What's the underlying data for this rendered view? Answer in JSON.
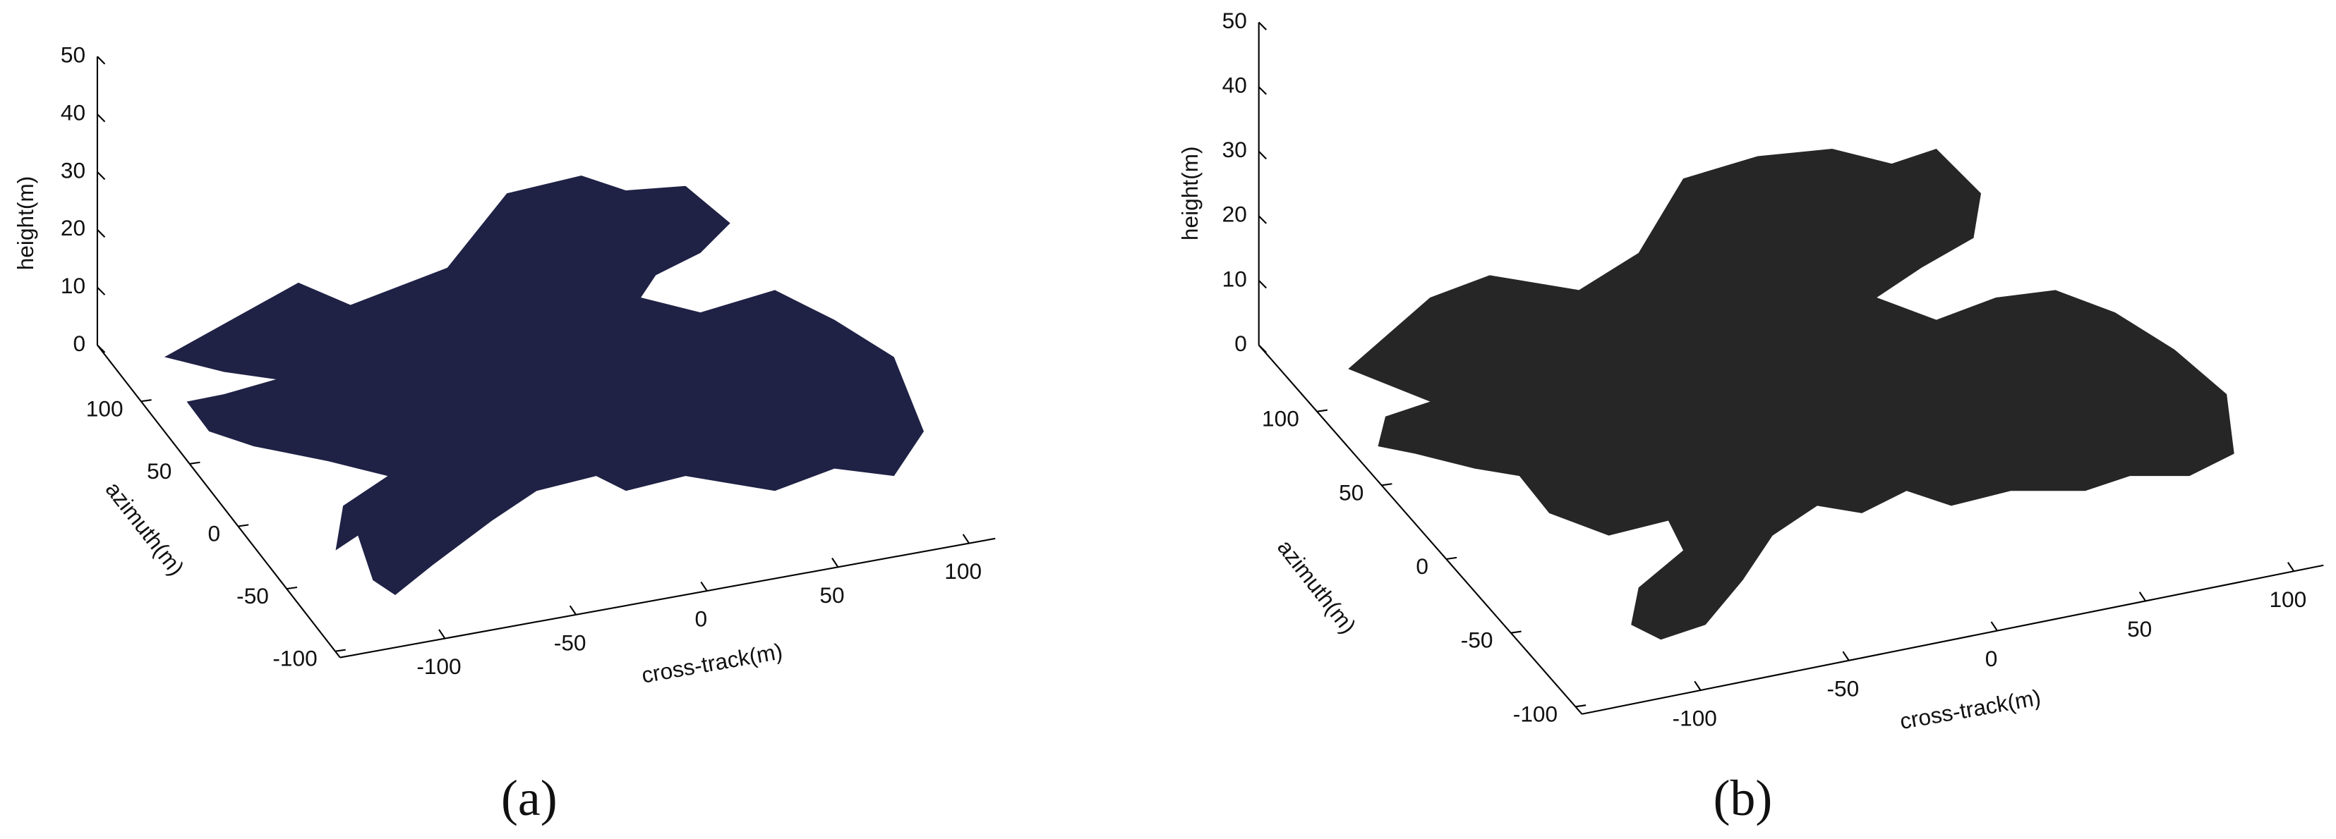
{
  "chart_data": [
    {
      "type": "scatter3d",
      "panel_label": "(a)",
      "xlabel": "cross-track(m)",
      "ylabel": "azimuth(m)",
      "zlabel": "height(m)",
      "xlim": [
        -140,
        110
      ],
      "xticks": [
        -100,
        -50,
        0,
        50,
        100
      ],
      "ylim": [
        -105,
        145
      ],
      "yticks": [
        -100,
        -50,
        0,
        50,
        100
      ],
      "zlim": [
        0,
        50
      ],
      "zticks": [
        0,
        10,
        20,
        30,
        40,
        50
      ],
      "color": "#1f2145"
    },
    {
      "type": "scatter3d",
      "panel_label": "(b)",
      "xlabel": "cross-track(m)",
      "ylabel": "azimuth(m)",
      "zlabel": "height(m)",
      "xlim": [
        -140,
        110
      ],
      "xticks": [
        -100,
        -50,
        0,
        50,
        100
      ],
      "ylim": [
        -105,
        145
      ],
      "yticks": [
        -100,
        -50,
        0,
        50,
        100
      ],
      "zlim": [
        0,
        50
      ],
      "zticks": [
        0,
        10,
        20,
        30,
        40,
        50
      ],
      "color": "#262626"
    }
  ]
}
